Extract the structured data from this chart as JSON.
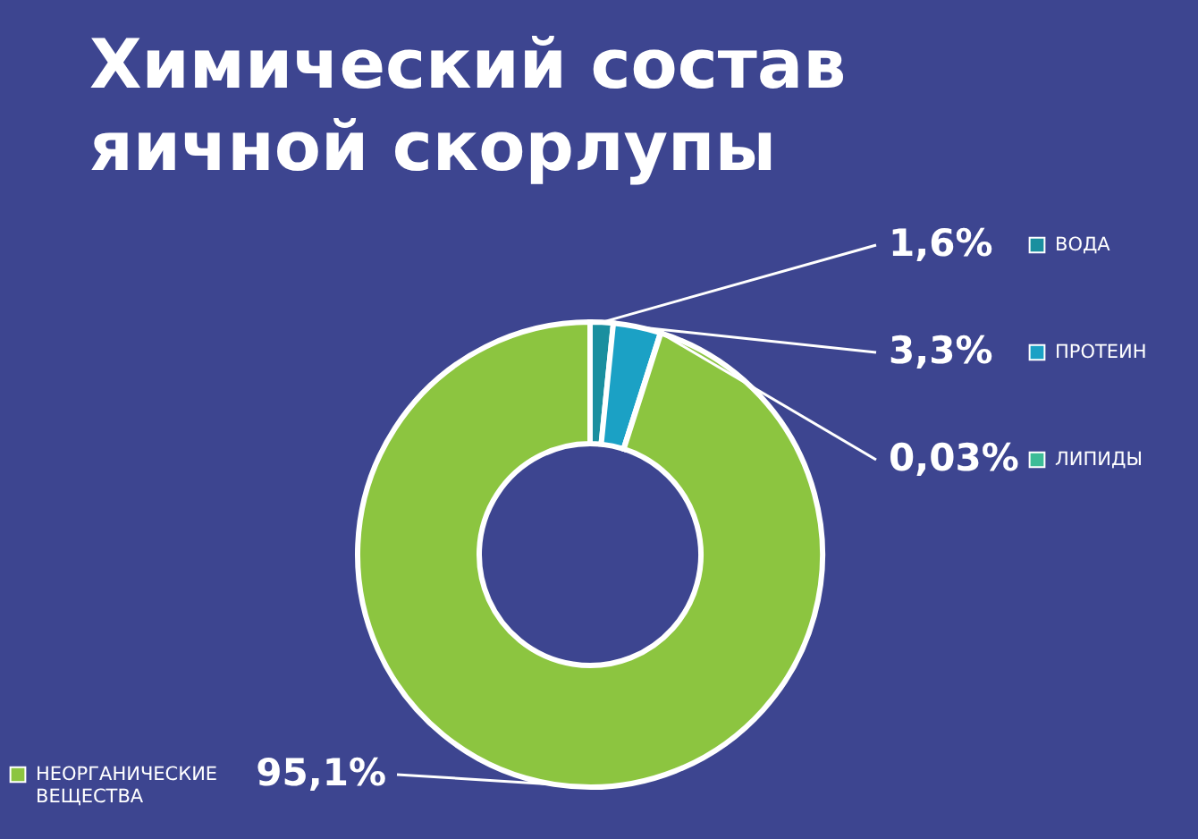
{
  "chart_data": {
    "type": "donut",
    "title": "Химический состав яичной скорлупы",
    "categories": [
      "ВОДА",
      "ПРОТЕИН",
      "ЛИПИДЫ",
      "НЕОРГАНИЧЕСКИЕ ВЕЩЕСТВА"
    ],
    "values": [
      1.6,
      3.3,
      0.03,
      95.1
    ],
    "colors": [
      "#1a8f9f",
      "#1ba1c5",
      "#3dbc97",
      "#8cc540"
    ],
    "value_labels": [
      "1,6%",
      "3,3%",
      "0,03%",
      "95,1%"
    ],
    "legend": "right"
  }
}
